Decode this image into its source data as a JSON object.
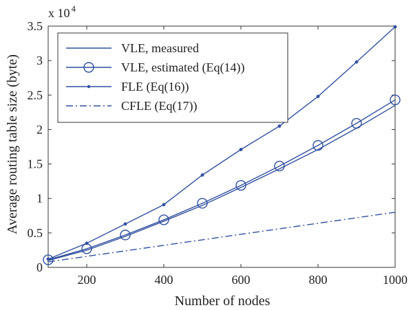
{
  "chart_data": {
    "type": "line",
    "xlabel": "Number of nodes",
    "ylabel": "Average routing table size (byte)",
    "y_exponent_label": "x 10",
    "y_exponent_power": "4",
    "xlim": [
      100,
      1000
    ],
    "ylim": [
      0,
      35000
    ],
    "x_ticks": [
      200,
      400,
      600,
      800,
      1000
    ],
    "x_tick_labels": [
      "200",
      "400",
      "600",
      "800",
      "1000"
    ],
    "y_ticks": [
      0,
      5000,
      10000,
      15000,
      20000,
      25000,
      30000,
      35000
    ],
    "y_tick_labels": [
      "0",
      "0.5",
      "1",
      "1.5",
      "2",
      "2.5",
      "3",
      "3.5"
    ],
    "grid": false,
    "legend_position": "top-left",
    "line_color": "#2f4f9f",
    "series": [
      {
        "name": "VLE, measured",
        "style": "solid",
        "marker": "none",
        "x": [
          100,
          200,
          300,
          400,
          500,
          600,
          700,
          800,
          900,
          1000
        ],
        "values": [
          1000,
          2500,
          4500,
          6700,
          9000,
          11600,
          14300,
          17100,
          20200,
          23500
        ]
      },
      {
        "name": "VLE, estimated (Eq(14))",
        "style": "solid",
        "marker": "circle",
        "x": [
          100,
          200,
          300,
          400,
          500,
          600,
          700,
          800,
          900,
          1000
        ],
        "values": [
          1100,
          2700,
          4700,
          6900,
          9300,
          11900,
          14700,
          17700,
          20900,
          24300
        ]
      },
      {
        "name": "FLE (Eq(16))",
        "style": "solid",
        "marker": "dot",
        "x": [
          100,
          200,
          300,
          400,
          500,
          600,
          700,
          800,
          900,
          1000
        ],
        "values": [
          1200,
          3500,
          6300,
          9100,
          13400,
          17100,
          20500,
          24800,
          29800,
          34900
        ]
      },
      {
        "name": "CFLE (Eq(17))",
        "style": "dashdot",
        "marker": "none",
        "x": [
          100,
          200,
          300,
          400,
          500,
          600,
          700,
          800,
          900,
          1000
        ],
        "values": [
          800,
          1600,
          2400,
          3200,
          4000,
          4800,
          5600,
          6400,
          7200,
          8000
        ]
      }
    ]
  }
}
